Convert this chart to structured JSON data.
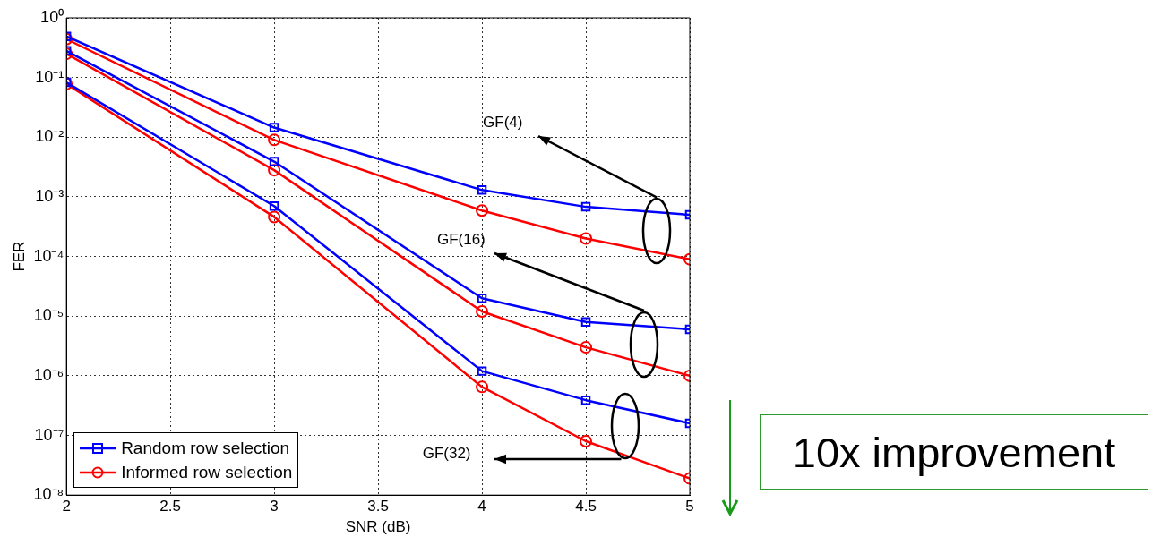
{
  "chart_data": {
    "type": "line",
    "xlabel": "SNR (dB)",
    "ylabel": "FER",
    "x": [
      2,
      3,
      4,
      4.5,
      5
    ],
    "log": "y",
    "grid": true,
    "legend": "bottom left",
    "xlim": [
      2,
      5
    ],
    "xticks": [
      2,
      2.5,
      3,
      3.5,
      4,
      4.5,
      5
    ],
    "ylim": [
      1e-08,
      1
    ],
    "yticks": [
      {
        "value": 1,
        "label": "10⁰"
      },
      {
        "value": 0.1,
        "label": "10⁻¹"
      },
      {
        "value": 0.01,
        "label": "10⁻²"
      },
      {
        "value": 0.001,
        "label": "10⁻³"
      },
      {
        "value": 0.0001,
        "label": "10⁻⁴"
      },
      {
        "value": 1e-05,
        "label": "10⁻⁵"
      },
      {
        "value": 1e-06,
        "label": "10⁻⁶"
      },
      {
        "value": 1e-07,
        "label": "10⁻⁷"
      },
      {
        "value": 1e-08,
        "label": "10⁻⁸"
      }
    ],
    "annotations": [
      "GF(4)",
      "GF(16)",
      "GF(32)",
      "10x improvement"
    ],
    "series": [
      {
        "name": "Random row selection",
        "color": "#0000ff",
        "marker": "square",
        "values": [
          0.49,
          0.0145,
          0.0013,
          0.00068,
          0.0005
        ]
      },
      {
        "name": "Informed row selection",
        "color": "#ff0000",
        "marker": "circle",
        "values": [
          0.44,
          0.009,
          0.00059,
          0.0002,
          9e-05
        ]
      },
      {
        "color": "#0000ff",
        "marker": "square",
        "values": [
          0.28,
          0.0039,
          2e-05,
          8e-06,
          6e-06
        ]
      },
      {
        "color": "#ff0000",
        "marker": "circle",
        "values": [
          0.25,
          0.0028,
          1.2e-05,
          3e-06,
          1e-06
        ]
      },
      {
        "color": "#0000ff",
        "marker": "square",
        "values": [
          0.083,
          0.0007,
          1.2e-06,
          3.9e-07,
          1.6e-07
        ]
      },
      {
        "color": "#ff0000",
        "marker": "circle",
        "values": [
          0.078,
          0.00046,
          6.5e-07,
          8e-08,
          1.9e-08
        ]
      }
    ]
  }
}
